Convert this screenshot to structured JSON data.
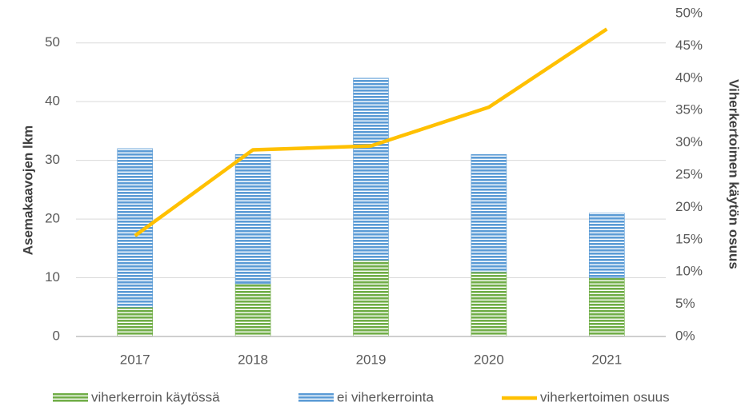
{
  "chart_data": {
    "type": "bar",
    "categories": [
      "2017",
      "2018",
      "2019",
      "2020",
      "2021"
    ],
    "ylabel": "Asemakaavojen lkm",
    "y2label": "Viherkertoimen käytön osuus",
    "ylim": [
      0,
      55
    ],
    "yticks": [
      0,
      10,
      20,
      30,
      40,
      50
    ],
    "y2lim": [
      0,
      50
    ],
    "y2ticks": [
      {
        "value": 0,
        "label": "0%"
      },
      {
        "value": 5,
        "label": "5%"
      },
      {
        "value": 10,
        "label": "10%"
      },
      {
        "value": 15,
        "label": "15%"
      },
      {
        "value": 20,
        "label": "20%"
      },
      {
        "value": 25,
        "label": "25%"
      },
      {
        "value": 30,
        "label": "30%"
      },
      {
        "value": 35,
        "label": "35%"
      },
      {
        "value": 40,
        "label": "40%"
      },
      {
        "value": 45,
        "label": "45%"
      },
      {
        "value": 50,
        "label": "50%"
      }
    ],
    "grid": true,
    "legend": "bottom",
    "series": [
      {
        "name": "viherkerroin käytössä",
        "type": "bar",
        "color": "#70ad47",
        "values": [
          5,
          9,
          13,
          11,
          10
        ]
      },
      {
        "name": "ei viherkerrointa",
        "type": "bar",
        "color": "#5b9bd5",
        "values": [
          27,
          22,
          31,
          20,
          11
        ]
      },
      {
        "name": "viherkertoimen osuus",
        "type": "line",
        "axis": "y2",
        "color": "#ffc000",
        "values": [
          15.6,
          28.9,
          29.5,
          35.5,
          47.6
        ]
      }
    ]
  }
}
